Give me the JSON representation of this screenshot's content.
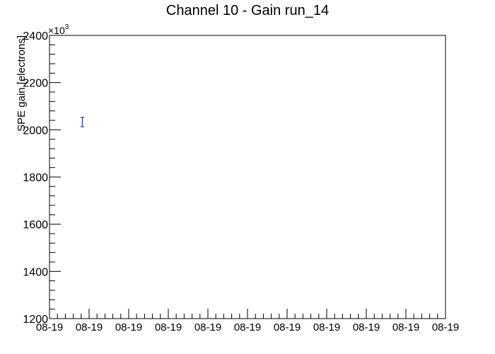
{
  "chart_data": {
    "type": "scatter",
    "title": "Channel 10 - Gain run_14",
    "xlabel": "",
    "ylabel": "SPE gain [electrons]",
    "y_multiplier_label": "×10",
    "y_multiplier_exponent": "3",
    "ylim": [
      1200,
      2400
    ],
    "y_major_ticks": [
      1200,
      1400,
      1600,
      1800,
      2000,
      2200,
      2400
    ],
    "y_minor_step": 40,
    "x_tick_labels": [
      "08-19",
      "08-19",
      "08-19",
      "08-19",
      "08-19",
      "08-19",
      "08-19",
      "08-19",
      "08-19",
      "08-19",
      "08-19"
    ],
    "x_minor_per_major": 5,
    "grid": false,
    "series": [
      {
        "color": "#1f2fd0",
        "points": [
          {
            "x_index": 0.83,
            "y": 2033,
            "y_err": 20
          }
        ]
      }
    ]
  }
}
